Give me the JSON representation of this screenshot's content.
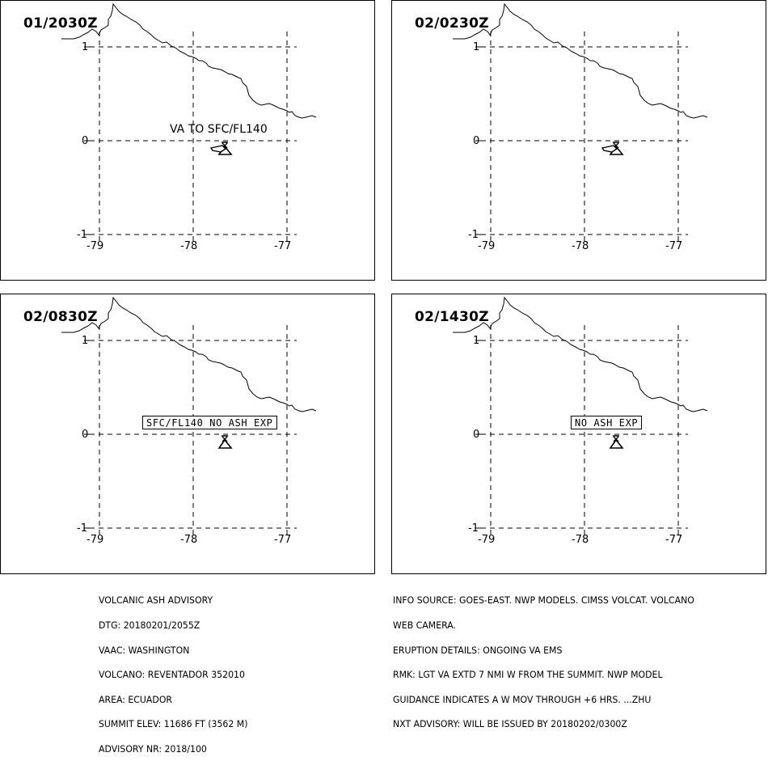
{
  "panels": [
    {
      "time": "01/2030Z",
      "label": "VA TO SFC/FL140",
      "label_style": "plain",
      "plume": true
    },
    {
      "time": "02/0230Z",
      "label": "",
      "label_style": "none",
      "plume": true
    },
    {
      "time": "02/0830Z",
      "label": "SFC/FL140 NO ASH EXP",
      "label_style": "boxed",
      "plume": false
    },
    {
      "time": "02/1430Z",
      "label": "NO ASH EXP",
      "label_style": "boxed",
      "plume": false
    }
  ],
  "axes": {
    "x_ticks": [
      "-79",
      "-78",
      "-77"
    ],
    "y_ticks": [
      "1",
      "0",
      "-1"
    ]
  },
  "icons": {
    "volcano": "volcano-icon",
    "plume": "ash-plume-shape",
    "coastline": "coastline-line"
  },
  "advisory_left": [
    "VOLCANIC ASH ADVISORY",
    "DTG: 20180201/2055Z",
    "VAAC: WASHINGTON",
    "VOLCANO: REVENTADOR 352010",
    "AREA: ECUADOR",
    "SUMMIT ELEV: 11686 FT (3562 M)",
    "ADVISORY NR: 2018/100"
  ],
  "advisory_right": [
    "INFO SOURCE: GOES-EAST. NWP MODELS. CIMSS VOLCAT. VOLCANO",
    "WEB CAMERA.",
    "ERUPTION DETAILS: ONGOING VA EMS",
    "RMK: LGT VA EXTD 7 NMI W FROM THE SUMMIT. NWP MODEL",
    "GUIDANCE INDICATES A W MOV THROUGH +6 HRS. ...ZHU",
    "NXT ADVISORY: WILL BE ISSUED BY 20180202/0300Z"
  ]
}
